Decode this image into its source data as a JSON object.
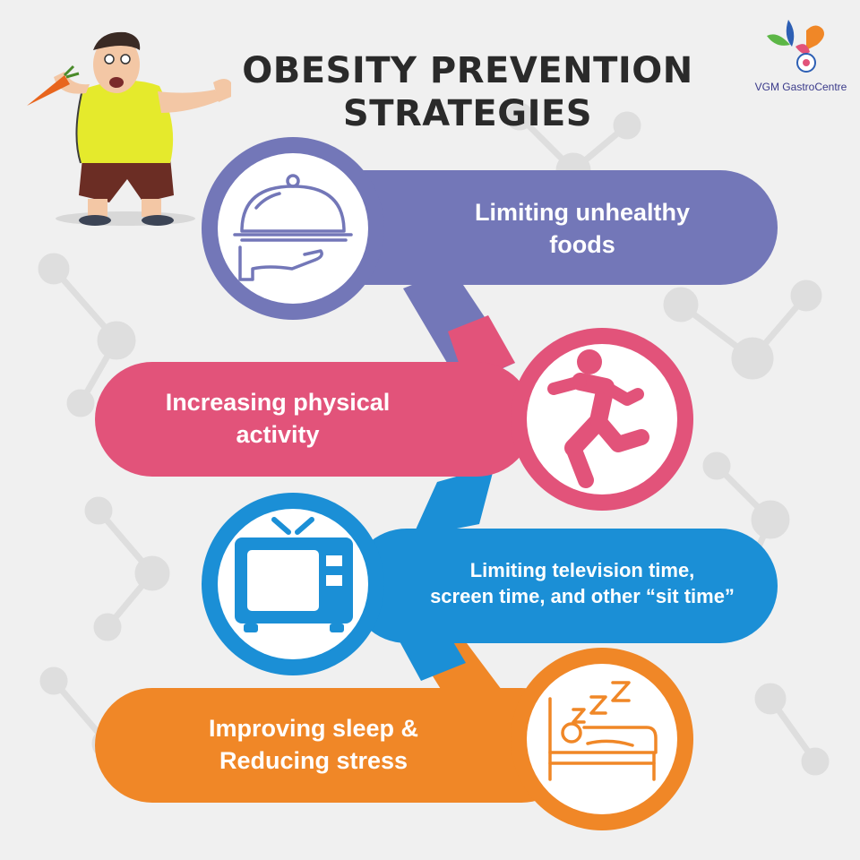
{
  "title": {
    "line1": "OBESITY PREVENTION",
    "line2": "STRATEGIES"
  },
  "brand": {
    "name": "VGM GastroCentre"
  },
  "strategies": [
    {
      "line1": "Limiting unhealthy",
      "line2": "foods",
      "color": "#7377b8",
      "icon": "food-tray-icon"
    },
    {
      "line1": "Increasing physical",
      "line2": "activity",
      "color": "#e2537a",
      "icon": "running-person-icon"
    },
    {
      "line1": "Limiting television time,",
      "line2": "screen time, and other “sit time”",
      "color": "#1b8fd6",
      "icon": "television-icon"
    },
    {
      "line1": "Improving sleep &",
      "line2": "Reducing stress",
      "color": "#f08727",
      "icon": "sleeping-bed-icon"
    }
  ]
}
